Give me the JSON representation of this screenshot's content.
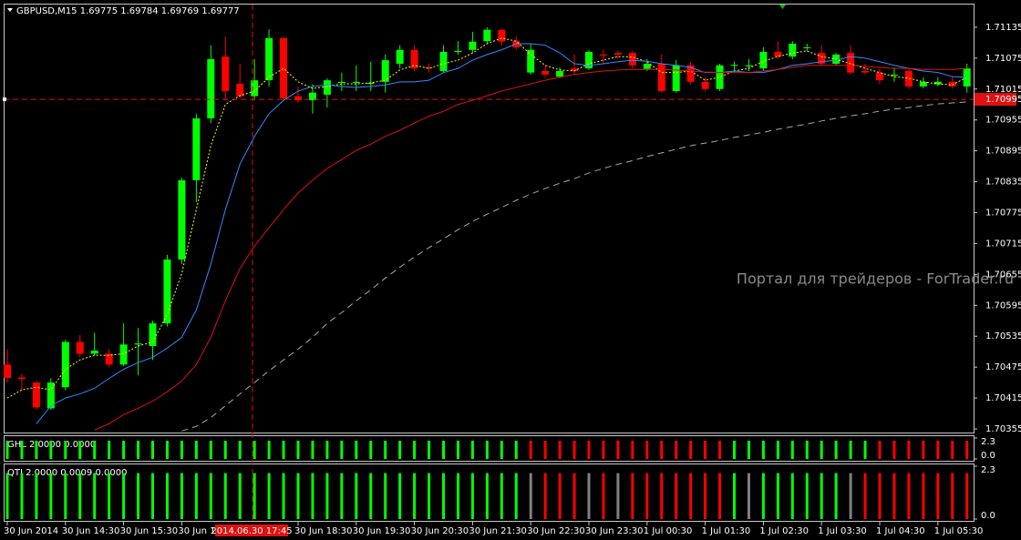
{
  "chart_data": [
    {
      "type": "candlestick",
      "title": "GBPUSD,M15  1.69775 1.69784 1.69769 1.69777",
      "watermark": "Портал для трейдеров - ForTrader.ru",
      "categories": [
        "30 Jun 2014",
        null,
        null,
        null,
        "30 Jun 14:30",
        null,
        null,
        null,
        "30 Jun 15:30",
        null,
        null,
        null,
        "30 Jun 16:30",
        null,
        null,
        null,
        null,
        null,
        null,
        null,
        "30 Jun 18:30",
        null,
        null,
        null,
        "30 Jun 19:30",
        null,
        null,
        null,
        "30 Jun 20:30",
        null,
        null,
        null,
        "30 Jun 21:30",
        null,
        null,
        null,
        "30 Jun 22:30",
        null,
        null,
        null,
        "30 Jun 23:30",
        null,
        null,
        null,
        "1 Jul 00:30",
        null,
        null,
        null,
        "1 Jul 01:30",
        null,
        null,
        null,
        "1 Jul 02:30",
        null,
        null,
        null,
        "1 Jul 03:30",
        null,
        null,
        null,
        "1 Jul 04:30",
        null,
        null,
        null,
        "1 Jul 05:30",
        null,
        null
      ],
      "open": [
        1.7048,
        1.70455,
        1.70445,
        1.70395,
        1.70436,
        1.70524,
        1.70501,
        1.70501,
        1.7048,
        1.70519,
        1.70516,
        1.7056,
        1.70684,
        1.70838,
        1.70958,
        1.71078,
        1.71025,
        1.71001,
        1.71032,
        1.71114,
        1.71001,
        1.70993,
        1.71004,
        1.71027,
        1.71027,
        1.71025,
        1.71029,
        1.71064,
        1.71091,
        1.71057,
        1.7105,
        1.71087,
        1.71091,
        1.71108,
        1.7113,
        1.71108,
        1.71047,
        1.7105,
        1.71039,
        1.71055,
        1.71055,
        1.71082,
        1.71085,
        1.71085,
        1.71054,
        1.71064,
        1.71011,
        1.71061,
        1.71029,
        1.71015,
        1.71061,
        1.71059,
        1.71055,
        1.71087,
        1.71078,
        1.71096,
        1.71085,
        1.71064,
        1.71085,
        1.7105,
        1.71047,
        1.71043,
        1.7105,
        1.7102,
        1.71024,
        1.71029,
        1.7102
      ],
      "high": [
        1.7051,
        1.70462,
        1.70448,
        1.70454,
        1.70528,
        1.70537,
        1.70542,
        1.7051,
        1.7056,
        1.70551,
        1.70565,
        1.70693,
        1.70843,
        1.70967,
        1.711,
        1.71117,
        1.71064,
        1.71073,
        1.71131,
        1.71117,
        1.7102,
        1.71024,
        1.71036,
        1.71047,
        1.71061,
        1.71068,
        1.71082,
        1.711,
        1.711,
        1.71064,
        1.711,
        1.71108,
        1.71126,
        1.71135,
        1.71131,
        1.71117,
        1.71103,
        1.71061,
        1.71057,
        1.71082,
        1.71091,
        1.71091,
        1.71089,
        1.71089,
        1.71073,
        1.71082,
        1.71071,
        1.71068,
        1.71038,
        1.71064,
        1.71068,
        1.71073,
        1.71096,
        1.71108,
        1.71108,
        1.71103,
        1.711,
        1.71085,
        1.711,
        1.71064,
        1.71055,
        1.71057,
        1.71055,
        1.71038,
        1.71038,
        1.71039,
        1.71064
      ],
      "low": [
        1.70445,
        1.7043,
        1.70392,
        1.70392,
        1.7043,
        1.70494,
        1.70498,
        1.70475,
        1.70477,
        1.70459,
        1.70489,
        1.70554,
        1.70675,
        1.70795,
        1.70949,
        1.70993,
        1.70997,
        1.70993,
        1.7102,
        1.70993,
        1.70988,
        1.70967,
        1.70979,
        1.71011,
        1.71011,
        1.71011,
        1.71008,
        1.71055,
        1.7105,
        1.71047,
        1.71047,
        1.71082,
        1.71085,
        1.71103,
        1.711,
        1.71091,
        1.71043,
        1.71038,
        1.71036,
        1.71043,
        1.71052,
        1.71064,
        1.71073,
        1.71055,
        1.7105,
        1.71008,
        1.71008,
        1.71024,
        1.71011,
        1.71011,
        1.71047,
        1.7105,
        1.7105,
        1.71073,
        1.71073,
        1.71089,
        1.71061,
        1.71061,
        1.71043,
        1.71043,
        1.71025,
        1.71029,
        1.71015,
        1.71016,
        1.7102,
        1.71016,
        1.71008
      ],
      "close": [
        1.70454,
        1.70452,
        1.70397,
        1.70445,
        1.70524,
        1.70501,
        1.70507,
        1.7048,
        1.70519,
        1.70521,
        1.7056,
        1.70684,
        1.70838,
        1.70958,
        1.71073,
        1.71011,
        1.71001,
        1.71032,
        1.71114,
        1.70997,
        1.70993,
        1.71008,
        1.71032,
        1.71029,
        1.71029,
        1.71027,
        1.71071,
        1.71091,
        1.71055,
        1.71055,
        1.71087,
        1.71089,
        1.71107,
        1.7113,
        1.71107,
        1.71096,
        1.71091,
        1.71043,
        1.7105,
        1.7105,
        1.71087,
        1.7108,
        1.71082,
        1.71061,
        1.71064,
        1.71011,
        1.71061,
        1.71029,
        1.71015,
        1.71061,
        1.71062,
        1.71061,
        1.71087,
        1.71078,
        1.71103,
        1.71096,
        1.71064,
        1.71082,
        1.71047,
        1.71047,
        1.71032,
        1.71043,
        1.7102,
        1.71029,
        1.71029,
        1.7102,
        1.71055
      ],
      "up_color": "#00ff00",
      "down_color": "#ff0000",
      "series": [
        {
          "color": "#ffff00",
          "style": "dotted",
          "values": [
            1.70415,
            1.70431,
            1.70436,
            1.70431,
            1.70471,
            1.70489,
            1.70498,
            1.70498,
            1.70501,
            1.70516,
            1.70524,
            1.70577,
            1.70657,
            1.70781,
            1.70905,
            1.70985,
            1.71002,
            1.71011,
            1.71038,
            1.71055,
            1.71029,
            1.71016,
            1.7102,
            1.71025,
            1.71025,
            1.71027,
            1.71032,
            1.71052,
            1.71061,
            1.71055,
            1.71064,
            1.71071,
            1.71085,
            1.71103,
            1.71114,
            1.71108,
            1.71082,
            1.71061,
            1.71052,
            1.7105,
            1.71064,
            1.71071,
            1.71078,
            1.71077,
            1.71068,
            1.71047,
            1.71047,
            1.7105,
            1.71032,
            1.71038,
            1.7105,
            1.71055,
            1.71069,
            1.71078,
            1.71085,
            1.71089,
            1.71078,
            1.71073,
            1.71064,
            1.71055,
            1.71047,
            1.71039,
            1.71036,
            1.71029,
            1.71025,
            1.71023,
            1.71038
          ]
        },
        {
          "color": "#2f8cff",
          "style": "solid",
          "values": [
            null,
            null,
            1.70365,
            1.704,
            1.70415,
            1.70423,
            1.70434,
            1.70453,
            1.70471,
            1.70484,
            1.70494,
            1.70512,
            1.70533,
            1.70586,
            1.70675,
            1.70781,
            1.70869,
            1.70923,
            1.70967,
            1.70993,
            1.71011,
            1.7102,
            1.71023,
            1.7102,
            1.71018,
            1.7102,
            1.71023,
            1.71029,
            1.71029,
            1.71032,
            1.71047,
            1.71055,
            1.71071,
            1.71082,
            1.71091,
            1.71103,
            1.71103,
            1.711,
            1.71085,
            1.71064,
            1.71061,
            1.71064,
            1.71068,
            1.71071,
            1.71069,
            1.71064,
            1.71061,
            1.71057,
            1.71047,
            1.71047,
            1.7105,
            1.71047,
            1.71047,
            1.71053,
            1.71061,
            1.71064,
            1.71068,
            1.71071,
            1.71078,
            1.71075,
            1.71068,
            1.71061,
            1.71055,
            1.7105,
            1.71047,
            1.71039,
            1.71038
          ]
        },
        {
          "color": "#e01010",
          "style": "solid",
          "values": [
            null,
            null,
            null,
            null,
            null,
            null,
            1.70353,
            1.70365,
            1.70383,
            1.70395,
            1.70409,
            1.70427,
            1.70448,
            1.7048,
            1.70533,
            1.70604,
            1.70666,
            1.7071,
            1.70746,
            1.70781,
            1.70813,
            1.70838,
            1.70861,
            1.70878,
            1.70896,
            1.70908,
            1.70923,
            1.70935,
            1.70949,
            1.70962,
            1.70972,
            1.70985,
            1.70993,
            1.71002,
            1.71011,
            1.71018,
            1.71025,
            1.71032,
            1.71038,
            1.71043,
            1.71047,
            1.7105,
            1.71052,
            1.71053,
            1.71053,
            1.71053,
            1.71052,
            1.7105,
            1.71048,
            1.71047,
            1.71047,
            1.71047,
            1.7105,
            1.71053,
            1.71057,
            1.71061,
            1.71061,
            1.71061,
            1.71061,
            1.71059,
            1.71057,
            1.71055,
            1.71055,
            1.71053,
            1.71053,
            1.71053,
            1.71055
          ]
        },
        {
          "color": "#a8a8a8",
          "style": "dashed",
          "values": [
            null,
            null,
            null,
            null,
            null,
            null,
            null,
            null,
            null,
            null,
            null,
            null,
            1.70351,
            1.7036,
            1.70377,
            1.704,
            1.70423,
            1.70445,
            1.70468,
            1.70489,
            1.7051,
            1.70533,
            1.7056,
            1.70581,
            1.70604,
            1.70625,
            1.70648,
            1.70669,
            1.70689,
            1.70707,
            1.70724,
            1.70742,
            1.70758,
            1.70772,
            1.70785,
            1.70799,
            1.70811,
            1.70822,
            1.70832,
            1.70841,
            1.70852,
            1.70861,
            1.70869,
            1.70876,
            1.70884,
            1.70891,
            1.70898,
            1.70905,
            1.7091,
            1.70915,
            1.70921,
            1.70926,
            1.70931,
            1.70937,
            1.70942,
            1.70947,
            1.70953,
            1.70958,
            1.70963,
            1.70967,
            1.70972,
            1.70976,
            1.70979,
            1.70983,
            1.70986,
            1.70988,
            1.7099
          ]
        }
      ],
      "ylim": [
        1.70348,
        1.71179
      ],
      "yticks": [
        1.71135,
        1.71075,
        1.71015,
        1.70955,
        1.70895,
        1.70835,
        1.70775,
        1.70715,
        1.70655,
        1.70595,
        1.70535,
        1.70475,
        1.70415,
        1.70355
      ],
      "cursor": {
        "price": 1.70995,
        "time": "2014.06.30 17:45"
      }
    },
    {
      "type": "bar",
      "title": "GHL 2.0000 0.0000",
      "values": [
        2,
        2,
        2,
        2,
        2,
        2,
        2,
        2,
        2,
        2,
        2,
        2,
        2,
        2,
        2,
        2,
        2,
        2,
        2,
        2,
        2,
        2,
        2,
        2,
        2,
        2,
        2,
        2,
        2,
        2,
        2,
        2,
        2,
        2,
        2,
        2,
        2,
        2,
        2,
        2,
        2,
        2,
        2,
        2,
        2,
        2,
        2,
        2,
        2,
        2,
        2,
        2,
        2,
        2,
        2,
        2,
        2,
        2,
        2,
        2,
        2,
        2,
        2,
        2,
        2,
        2,
        2
      ],
      "colors": [
        "lime",
        "lime",
        "lime",
        "lime",
        "lime",
        "lime",
        "lime",
        "lime",
        "lime",
        "lime",
        "lime",
        "lime",
        "lime",
        "lime",
        "lime",
        "lime",
        "lime",
        "lime",
        "lime",
        "lime",
        "lime",
        "lime",
        "lime",
        "lime",
        "lime",
        "lime",
        "lime",
        "lime",
        "lime",
        "lime",
        "lime",
        "lime",
        "lime",
        "lime",
        "lime",
        "lime",
        "red",
        "red",
        "red",
        "red",
        "red",
        "red",
        "red",
        "red",
        "red",
        "red",
        "red",
        "red",
        "red",
        "red",
        "lime",
        "lime",
        "lime",
        "lime",
        "lime",
        "lime",
        "lime",
        "lime",
        "lime",
        "lime",
        "red",
        "red",
        "red",
        "red",
        "red",
        "red",
        "red"
      ],
      "ylim": [
        0,
        2.3
      ],
      "yticks": [
        2.3,
        {
          "value": 0,
          "label": "0.0"
        }
      ]
    },
    {
      "type": "bar",
      "title": "QTI 2.0000 0.0009 0.0000",
      "values": [
        2,
        2,
        2,
        2,
        2,
        2,
        2,
        2,
        2,
        2,
        2,
        2,
        2,
        2,
        2,
        2,
        2,
        2,
        2,
        2,
        2,
        2,
        2,
        2,
        2,
        2,
        2,
        2,
        2,
        2,
        2,
        2,
        2,
        2,
        2,
        2,
        2,
        2,
        2,
        2,
        2,
        2,
        2,
        2,
        2,
        2,
        2,
        2,
        2,
        2,
        2,
        2,
        2,
        2,
        2,
        2,
        2,
        2,
        2,
        2,
        2,
        2,
        2,
        2,
        2,
        2,
        2
      ],
      "colors": [
        "lime",
        "lime",
        "lime",
        "lime",
        "lime",
        "lime",
        "lime",
        "lime",
        "lime",
        "lime",
        "lime",
        "lime",
        "lime",
        "lime",
        "lime",
        "lime",
        "lime",
        "lime",
        "lime",
        "lime",
        "lime",
        "lime",
        "lime",
        "lime",
        "lime",
        "lime",
        "lime",
        "lime",
        "lime",
        "lime",
        "lime",
        "lime",
        "lime",
        "lime",
        "lime",
        "lime",
        "gray",
        "red",
        "red",
        "red",
        "gray",
        "red",
        "gray",
        "red",
        "red",
        "red",
        "red",
        "red",
        "red",
        "red",
        "lime",
        "gray",
        "lime",
        "lime",
        "lime",
        "lime",
        "lime",
        "lime",
        "gray",
        "red",
        "red",
        "red",
        "red",
        "red",
        "red",
        "red",
        "red"
      ],
      "ylim": [
        0,
        2.3
      ],
      "yticks": [
        2.3,
        {
          "value": 0,
          "label": "0.0"
        }
      ]
    }
  ]
}
